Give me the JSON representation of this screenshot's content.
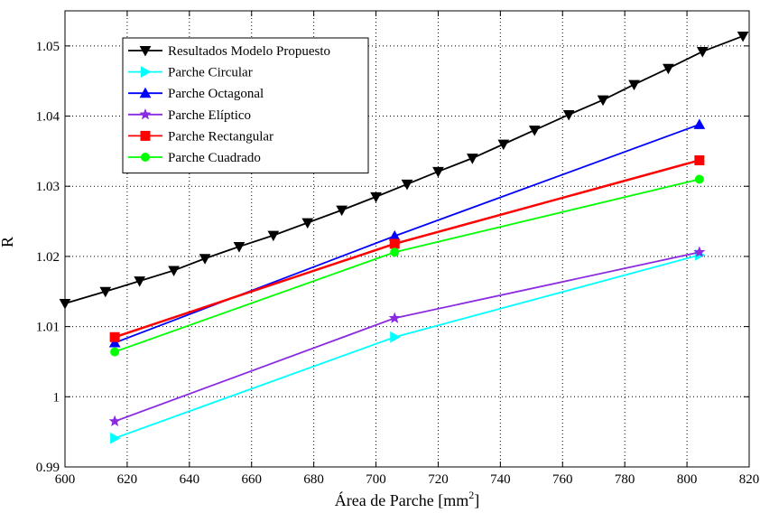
{
  "chart_data": {
    "type": "line",
    "title": "",
    "xlabel": "Área de Parche [mm",
    "xlabel_sup": "2",
    "xlabel_end": "]",
    "ylabel": "R",
    "xlim": [
      600,
      820
    ],
    "ylim": [
      0.99,
      1.055
    ],
    "x_ticks": [
      600,
      620,
      640,
      660,
      680,
      700,
      720,
      740,
      760,
      780,
      800,
      820
    ],
    "x_tick_labels": [
      "600",
      "620",
      "640",
      "660",
      "680",
      "700",
      "720",
      "740",
      "760",
      "780",
      "800",
      "820"
    ],
    "y_ticks": [
      0.99,
      1.0,
      1.01,
      1.02,
      1.03,
      1.04,
      1.05
    ],
    "y_tick_labels": [
      "0.99",
      "1",
      "1.01",
      "1.02",
      "1.03",
      "1.04",
      "1.05"
    ],
    "grid": true,
    "legend_position": "top-left",
    "series": [
      {
        "name": "Resultados Modelo Propuesto",
        "color": "#000000",
        "marker": "triangle-down",
        "x": [
          600,
          613,
          624,
          635,
          645,
          656,
          667,
          678,
          689,
          700,
          710,
          720,
          731,
          741,
          751,
          762,
          773,
          783,
          794,
          805,
          818
        ],
        "y": [
          1.0133,
          1.015,
          1.0165,
          1.018,
          1.0197,
          1.0214,
          1.023,
          1.0248,
          1.0266,
          1.0285,
          1.0303,
          1.0321,
          1.034,
          1.036,
          1.038,
          1.0402,
          1.0423,
          1.0445,
          1.0468,
          1.0492,
          1.0514
        ]
      },
      {
        "name": "Parche Circular",
        "color": "#00ffff",
        "marker": "triangle-right",
        "x": [
          616,
          706,
          804
        ],
        "y": [
          0.9941,
          1.0085,
          1.0202
        ]
      },
      {
        "name": "Parche Octagonal",
        "color": "#0000ff",
        "marker": "triangle-up",
        "x": [
          616,
          706,
          804
        ],
        "y": [
          1.0077,
          1.0229,
          1.0388
        ]
      },
      {
        "name": "Parche Elíptico",
        "color": "#8a2be2",
        "marker": "star",
        "x": [
          616,
          706,
          804
        ],
        "y": [
          0.9965,
          1.0112,
          1.0206
        ]
      },
      {
        "name": "Parche Rectangular",
        "color": "#ff0000",
        "marker": "square",
        "x": [
          616,
          706,
          804
        ],
        "y": [
          1.0085,
          1.0218,
          1.0337
        ]
      },
      {
        "name": "Parche Cuadrado",
        "color": "#00ff00",
        "marker": "circle",
        "x": [
          616,
          706,
          804
        ],
        "y": [
          1.0064,
          1.0206,
          1.031
        ]
      }
    ]
  }
}
